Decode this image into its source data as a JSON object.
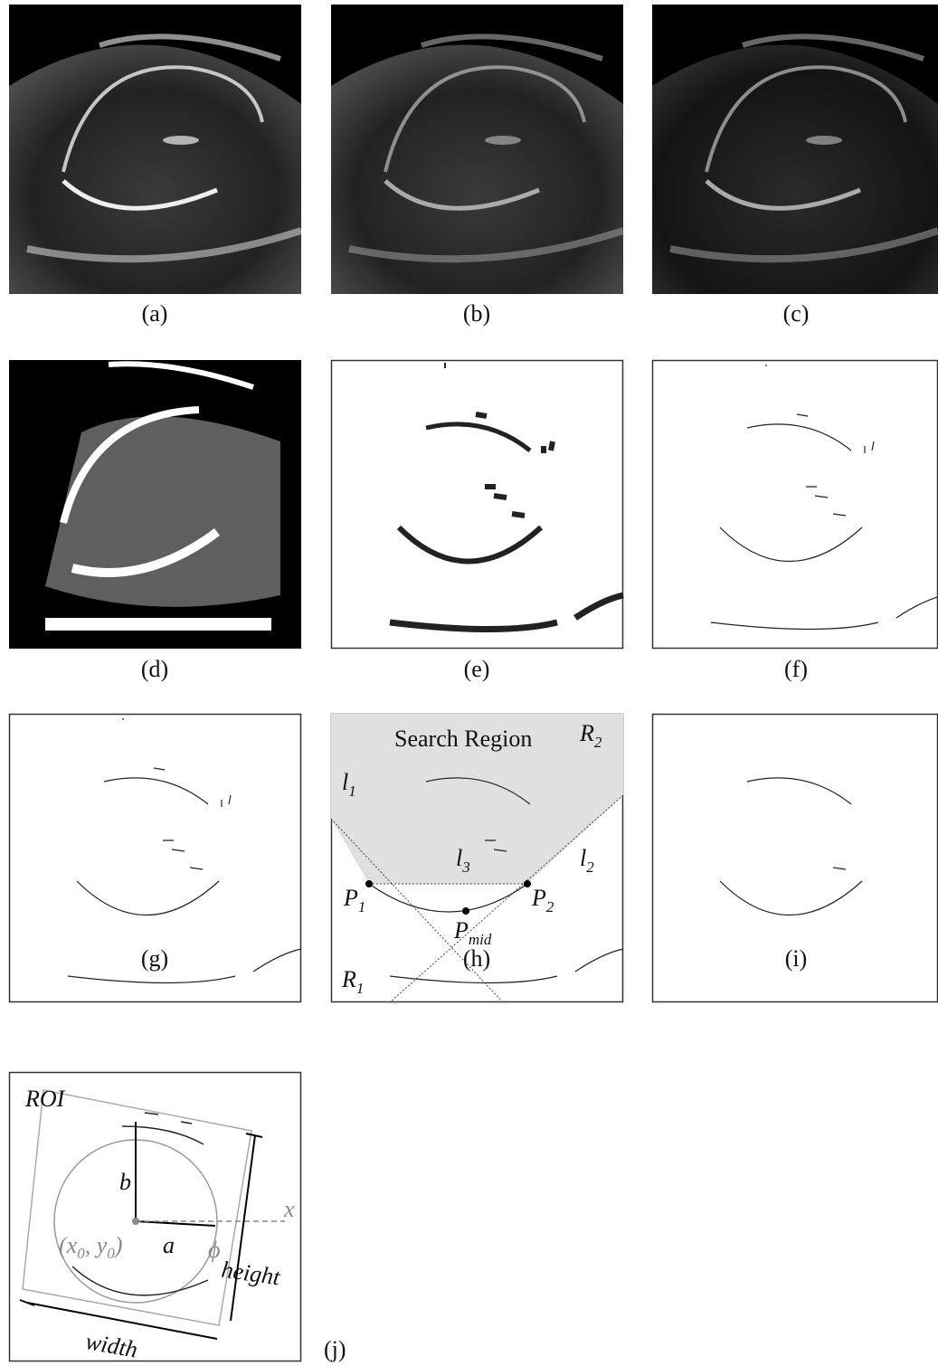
{
  "figure": {
    "panels": [
      "(a)",
      "(b)",
      "(c)",
      "(d)",
      "(e)",
      "(f)",
      "(g)",
      "(h)",
      "(i)",
      "(j)"
    ],
    "panel_h": {
      "search_region": "Search Region",
      "labels": [
        {
          "base": "R",
          "sub": "2"
        },
        {
          "base": "l",
          "sub": "1"
        },
        {
          "base": "l",
          "sub": "2"
        },
        {
          "base": "l",
          "sub": "3"
        },
        {
          "base": "P",
          "sub": "1"
        },
        {
          "base": "P",
          "sub": "2"
        },
        {
          "base": "P",
          "sub": "mid"
        },
        {
          "base": "R",
          "sub": "1"
        }
      ]
    },
    "panel_j": {
      "roi": "ROI",
      "b": "b",
      "a": "a",
      "phi": "ϕ",
      "x": "x",
      "height": "height",
      "width": "width",
      "center": [
        "(x",
        "0",
        ", y",
        "0",
        ")"
      ]
    }
  }
}
